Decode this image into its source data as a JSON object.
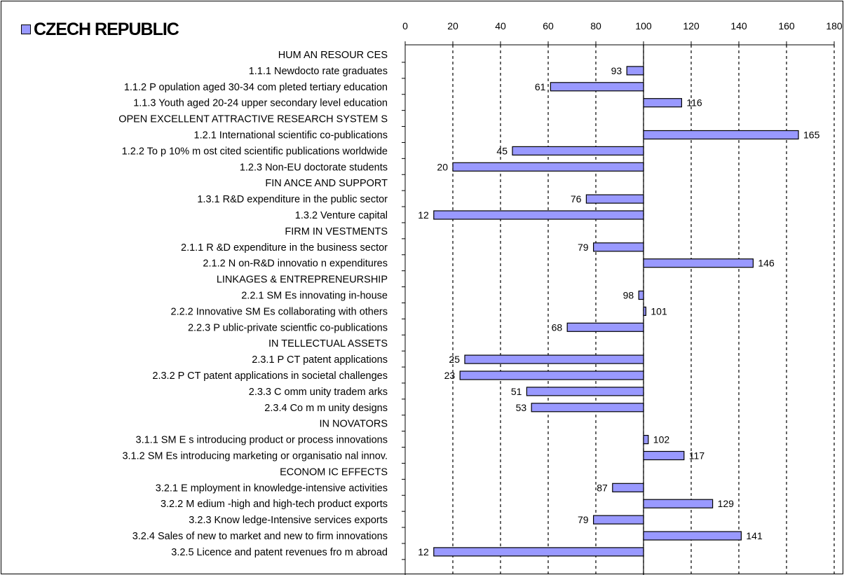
{
  "chart_data": {
    "type": "bar",
    "orientation": "horizontal",
    "title": "CZECH REPUBLIC",
    "series": [
      {
        "name": "CZECH REPUBLIC",
        "color": "#9999ff"
      }
    ],
    "baseline": 100,
    "xlim": [
      0,
      180
    ],
    "x_ticks": [
      "0",
      "20",
      "40",
      "60",
      "80",
      "100",
      "120",
      "140",
      "160",
      "180"
    ],
    "grid": "vertical dashed",
    "legend_position": "top-left",
    "rows": [
      {
        "label": "HUM AN RESOUR CES",
        "heading": true
      },
      {
        "label": "1.1.1 Newdocto rate graduates",
        "value": 93
      },
      {
        "label": "1.1.2 P opulation aged 30-34 com pleted tertiary education",
        "value": 61
      },
      {
        "label": "1.1.3 Youth aged 20-24 upper secondary level education",
        "value": 116
      },
      {
        "label": "OPEN EXCELLENT ATTRACTIVE RESEARCH SYSTEM S",
        "heading": true
      },
      {
        "label": "1.2.1 International scientific co-publications",
        "value": 165
      },
      {
        "label": "1.2.2 To p 10% m ost cited scientific publications worldwide",
        "value": 45
      },
      {
        "label": "1.2.3 Non-EU doctorate students",
        "value": 20
      },
      {
        "label": "FIN ANCE AND SUPPORT",
        "heading": true
      },
      {
        "label": "1.3.1 R&D expenditure in the public sector",
        "value": 76
      },
      {
        "label": "1.3.2 Venture capital",
        "value": 12
      },
      {
        "label": "FIRM IN VESTMENTS",
        "heading": true
      },
      {
        "label": "2.1.1 R &D expenditure in the business sector",
        "value": 79
      },
      {
        "label": "2.1.2 N on-R&D innovatio n expenditures",
        "value": 146
      },
      {
        "label": "LINKAGES & ENTREPRENEURSHIP",
        "heading": true
      },
      {
        "label": "2.2.1 SM Es innovating in-house",
        "value": 98
      },
      {
        "label": "2.2.2 Innovative SM Es collaborating with others",
        "value": 101
      },
      {
        "label": "2.2.3 P ublic-private scientfic co-publications",
        "value": 68
      },
      {
        "label": "IN TELLECTUAL ASSETS",
        "heading": true
      },
      {
        "label": "2.3.1 P CT patent applications",
        "value": 25
      },
      {
        "label": "2.3.2 P CT patent applications in societal challenges",
        "value": 23
      },
      {
        "label": "2.3.3 C omm unity tradem arks",
        "value": 51
      },
      {
        "label": "2.3.4 Co m m unity designs",
        "value": 53
      },
      {
        "label": "IN NOVATORS",
        "heading": true
      },
      {
        "label": "3.1.1 SM E s introducing product or process innovations",
        "value": 102
      },
      {
        "label": "3.1.2 SM Es introducing marketing or organisatio nal innov.",
        "value": 117
      },
      {
        "label": "ECONOM IC EFFECTS",
        "heading": true
      },
      {
        "label": "3.2.1 E mployment in knowledge-intensive activities",
        "value": 87
      },
      {
        "label": "3.2.2 M edium -high and high-tech product exports",
        "value": 129
      },
      {
        "label": "3.2.3 Know ledge-Intensive services exports",
        "value": 79
      },
      {
        "label": "3.2.4 Sales of new to market and new to firm innovations",
        "value": 141
      },
      {
        "label": "3.2.5 Licence and patent revenues fro m abroad",
        "value": 12
      }
    ]
  }
}
